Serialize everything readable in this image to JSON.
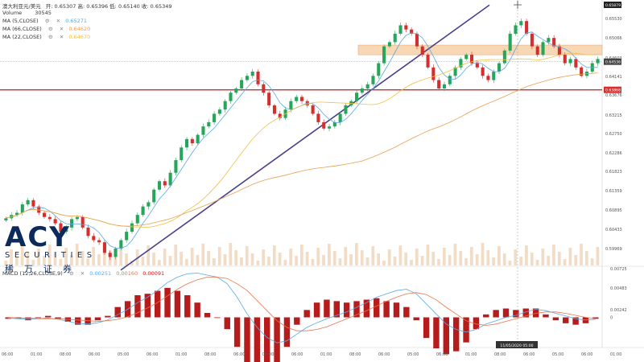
{
  "header": {
    "symbol": "澳大利亚元/美元",
    "ohlc": "开: 0.65307 高: 0.65396 低: 0.65140 收: 0.65349",
    "volume_label": "Volume",
    "volume_value": "30545",
    "ma5_label": "MA (5,CLOSE)",
    "ma5_value": "0.65271",
    "ma66_label": "MA (66,CLOSE)",
    "ma66_value": "0.64620",
    "ma22_label": "MA (22,CLOSE)",
    "ma22_value": "0.64670",
    "macd_label": "MACD (12,26,CLOSE,9)",
    "macd_v1": "0.00251",
    "macd_v2": "0.00160",
    "macd_v3": "0.00091"
  },
  "logo": {
    "main": "ACY",
    "sub": "SECURITIES",
    "cn": "稀万证券"
  },
  "colors": {
    "up": "#26a65b",
    "down": "#d32f2f",
    "ma5": "#5aa9e6",
    "ma22": "#f0c040",
    "ma66": "#e8a050",
    "trend": "#4a3f8c",
    "hline": "#d32f2f",
    "zone": "#f5c99b",
    "volume": "#f2dcc6",
    "macd_line": "#5aa9e6",
    "signal_line": "#e8744a",
    "hist": "#b71c1c"
  },
  "chart_data": {
    "type": "candlestick",
    "price_axis_labels": [
      "0.65879",
      "0.65530",
      "0.65066",
      "0.64603",
      "0.64141",
      "0.63676",
      "0.63215",
      "0.62750",
      "0.62286",
      "0.61823",
      "0.61359",
      "0.60895",
      "0.60433",
      "0.59969"
    ],
    "price_tags": {
      "top": "0.65879",
      "current": "0.64536",
      "level": "0.63868"
    },
    "macd_axis_labels": [
      "0.00725",
      "0.00483",
      "0.00242",
      "0"
    ],
    "time_labels": [
      "06:00",
      "01:00",
      "08:00",
      "06:00",
      "05:00",
      "06:00",
      "01:00",
      "08:00",
      "06:00",
      "05:00",
      "06:00",
      "01:00",
      "08:00",
      "06:00",
      "05:00",
      "06:00",
      "01:00",
      "08:00",
      "06:00",
      "05:00",
      "06:00",
      "01:00"
    ],
    "crosshair_time": "11/05/2020 05:00",
    "support_level": 0.63868,
    "resistance_zone": [
      0.647,
      0.6493
    ],
    "trendline": {
      "from": [
        0,
        0.5959
      ],
      "to": [
        608,
        0.6588
      ]
    },
    "closes": [
      0.6082,
      0.609,
      0.6095,
      0.6115,
      0.6125,
      0.611,
      0.6095,
      0.6085,
      0.608,
      0.607,
      0.605,
      0.606,
      0.608,
      0.6085,
      0.606,
      0.604,
      0.603,
      0.6025,
      0.6,
      0.599,
      0.601,
      0.603,
      0.605,
      0.607,
      0.609,
      0.611,
      0.612,
      0.615,
      0.617,
      0.616,
      0.619,
      0.622,
      0.625,
      0.627,
      0.626,
      0.628,
      0.63,
      0.631,
      0.633,
      0.634,
      0.636,
      0.638,
      0.639,
      0.641,
      0.642,
      0.643,
      0.64,
      0.638,
      0.635,
      0.633,
      0.632,
      0.634,
      0.636,
      0.637,
      0.636,
      0.635,
      0.633,
      0.631,
      0.6295,
      0.63,
      0.631,
      0.633,
      0.635,
      0.636,
      0.638,
      0.639,
      0.64,
      0.642,
      0.645,
      0.649,
      0.65,
      0.652,
      0.654,
      0.653,
      0.652,
      0.649,
      0.647,
      0.644,
      0.641,
      0.639,
      0.64,
      0.642,
      0.644,
      0.646,
      0.647,
      0.645,
      0.644,
      0.642,
      0.641,
      0.643,
      0.645,
      0.648,
      0.652,
      0.654,
      0.655,
      0.652,
      0.649,
      0.647,
      0.65,
      0.651,
      0.649,
      0.647,
      0.645,
      0.646,
      0.644,
      0.642,
      0.643,
      0.645,
      0.646
    ],
    "macd": [
      -0.0001,
      -0.0002,
      -0.0003,
      -0.0002,
      -0.0001,
      -0.0003,
      -0.0006,
      -0.0009,
      -0.001,
      -0.0008,
      -0.0004,
      0.0004,
      0.0012,
      0.0022,
      0.003,
      0.004,
      0.0052,
      0.006,
      0.0065,
      0.0066,
      0.0063,
      0.006,
      0.005,
      0.003,
      0.0005,
      -0.0015,
      -0.003,
      -0.0038,
      -0.0035,
      -0.0025,
      -0.0015,
      -0.0008,
      -0.0002,
      0.0003,
      0.0008,
      0.0015,
      0.0022,
      0.003,
      0.0035,
      0.004,
      0.0042,
      0.0035,
      0.002,
      0.0005,
      -0.001,
      -0.0018,
      -0.0022,
      -0.0018,
      -0.001,
      -0.0005,
      0.0,
      0.0003,
      0.0008,
      0.0012,
      0.001,
      0.0006,
      0.0002,
      -0.0002,
      -0.0004,
      -0.0003
    ],
    "signal": [
      0.0,
      -0.0001,
      -0.0001,
      -0.0002,
      -0.0002,
      -0.0002,
      -0.0003,
      -0.0004,
      -0.0005,
      -0.0006,
      -0.0005,
      -0.0003,
      0.0001,
      0.0007,
      0.0014,
      0.0022,
      0.0032,
      0.0042,
      0.005,
      0.0056,
      0.006,
      0.006,
      0.0058,
      0.005,
      0.004,
      0.0025,
      0.001,
      -0.0005,
      -0.0015,
      -0.002,
      -0.002,
      -0.0018,
      -0.0014,
      -0.0008,
      -0.0002,
      0.0004,
      0.001,
      0.0017,
      0.0024,
      0.003,
      0.0035,
      0.0037,
      0.0034,
      0.0026,
      0.0015,
      0.0005,
      -0.0005,
      -0.001,
      -0.0012,
      -0.001,
      -0.0006,
      -0.0002,
      0.0002,
      0.0006,
      0.0008,
      0.0008,
      0.0006,
      0.0003,
      0.0,
      -0.0002
    ]
  }
}
